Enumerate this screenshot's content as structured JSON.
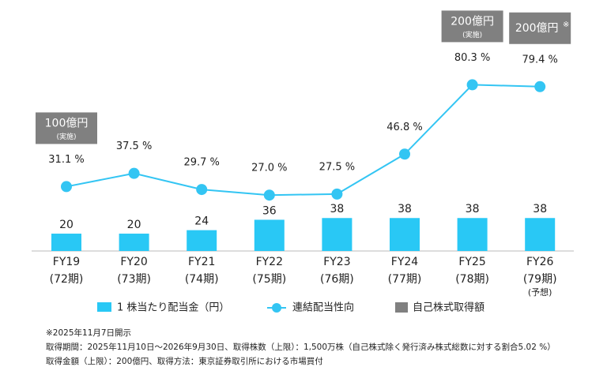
{
  "chart_data": {
    "type": "bar-line",
    "categories": [
      "FY19",
      "FY20",
      "FY21",
      "FY22",
      "FY23",
      "FY24",
      "FY25",
      "FY26"
    ],
    "category_sublabels": [
      "(72期)",
      "(73期)",
      "(74期)",
      "(75期)",
      "(76期)",
      "(77期)",
      "(78期)",
      "(79期)"
    ],
    "forecast_labels": [
      null,
      null,
      null,
      null,
      null,
      null,
      null,
      "(予想)"
    ],
    "ylim": [
      0,
      253
    ],
    "y2lim": [
      0,
      106
    ],
    "series": [
      {
        "name": "1 株当たり配当金（円）",
        "color": "#29c8f5",
        "values": [
          20,
          20,
          24,
          36,
          38,
          38,
          38,
          38
        ]
      },
      {
        "name": "連結配当性向",
        "color": "#33c5f3",
        "axis": "y2",
        "values": [
          31.1,
          37.5,
          29.7,
          27.0,
          27.5,
          46.8,
          80.3,
          79.4
        ],
        "value_labels": [
          "31.1 %",
          "37.5 %",
          "29.7 %",
          "27.0 %",
          "27.5 %",
          "46.8 %",
          "80.3 %",
          "79.4 %"
        ]
      },
      {
        "name": "自己株式取得額",
        "color": "#808080",
        "values": [
          100,
          null,
          null,
          null,
          null,
          null,
          200,
          200
        ],
        "value_labels": [
          "100億円",
          null,
          null,
          null,
          null,
          null,
          "200億円",
          "200億円"
        ],
        "value_notes": [
          "(実施)",
          null,
          null,
          null,
          null,
          null,
          "(実施)",
          "※"
        ]
      }
    ],
    "footnotes": [
      "※2025年11月7日開示",
      "取得期間：2025年11月10日～2026年9月30日、取得株数（上限）：1,500万株（自己株式除く発行済み株式総数に対する割合5.02 %）",
      "取得金額（上限）：200億円、取得方法：東京証券取引所における市場買付"
    ]
  }
}
